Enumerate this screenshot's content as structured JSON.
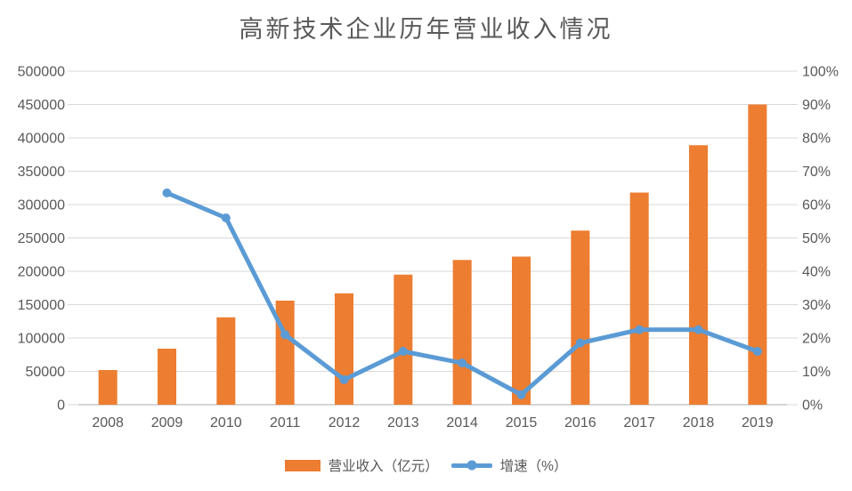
{
  "chart_data": {
    "type": "bar+line combo",
    "title": "高新技术企业历年营业收入情况",
    "categories": [
      "2008",
      "2009",
      "2010",
      "2011",
      "2012",
      "2013",
      "2014",
      "2015",
      "2016",
      "2017",
      "2018",
      "2019"
    ],
    "series": [
      {
        "name": "营业收入（亿元）",
        "type": "bar",
        "axis": "left",
        "color": "#ED7D31",
        "values": [
          52000,
          84000,
          131000,
          156000,
          167000,
          195000,
          217000,
          222000,
          261000,
          318000,
          389000,
          450000
        ]
      },
      {
        "name": "增速（%）",
        "type": "line",
        "axis": "right",
        "color": "#5B9BD5",
        "values": [
          null,
          63.5,
          56,
          21,
          7.5,
          16,
          12.5,
          3,
          18.5,
          22.5,
          22.5,
          16
        ]
      }
    ],
    "left_axis": {
      "min": 0,
      "max": 500000,
      "step": 50000,
      "tick_labels": [
        "0",
        "50000",
        "100000",
        "150000",
        "200000",
        "250000",
        "300000",
        "350000",
        "400000",
        "450000",
        "500000"
      ]
    },
    "right_axis": {
      "min": 0,
      "max": 100,
      "step": 10,
      "tick_labels": [
        "0%",
        "10%",
        "20%",
        "30%",
        "40%",
        "50%",
        "60%",
        "70%",
        "80%",
        "90%",
        "100%"
      ]
    },
    "grid": true,
    "legend_position": "bottom",
    "colors": {
      "grid": "#D9D9D9",
      "axis_line": "#C9C9C9",
      "text": "#595959",
      "title": "#595959",
      "background": "#FFFFFF"
    }
  }
}
